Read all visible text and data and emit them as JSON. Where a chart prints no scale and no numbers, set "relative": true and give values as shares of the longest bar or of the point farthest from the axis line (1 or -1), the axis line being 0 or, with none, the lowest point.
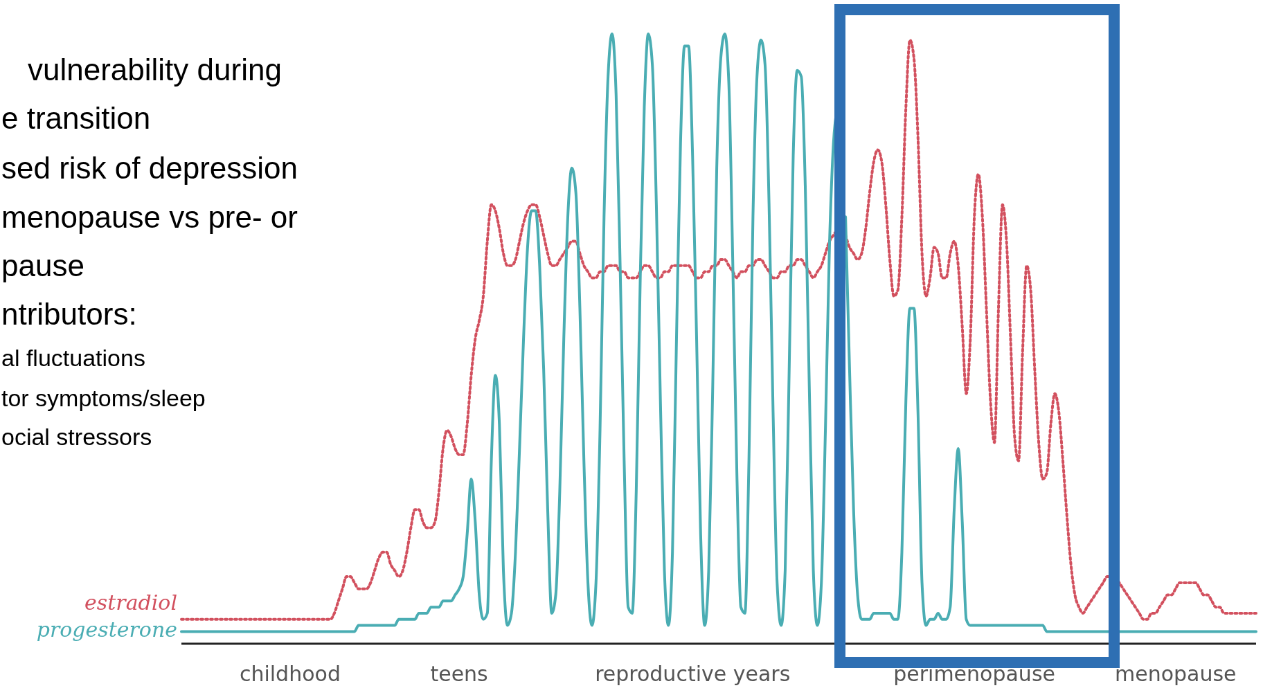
{
  "chart_data": {
    "type": "line",
    "relative": true,
    "annotations": [
      "vulnerability during",
      "e transition",
      "sed risk of depression",
      "menopause vs pre- or",
      "pause",
      "ntributors:",
      "al fluctuations",
      "tor symptoms/sleep",
      "ocial stressors"
    ],
    "categories": [
      null,
      null,
      null,
      null,
      null,
      null,
      null,
      null,
      null,
      null,
      null,
      null,
      null,
      null,
      null,
      null,
      null,
      null,
      null,
      null,
      null,
      null,
      null,
      null,
      null,
      null,
      null,
      "childhood",
      null,
      null,
      null,
      null,
      null,
      null,
      null,
      null,
      null,
      null,
      null,
      null,
      null,
      null,
      null,
      null,
      null,
      null,
      null,
      null,
      null,
      null,
      null,
      null,
      null,
      null,
      null,
      null,
      null,
      null,
      null,
      null,
      null,
      null,
      null,
      null,
      null,
      null,
      null,
      null,
      null,
      "teens",
      null,
      null,
      null,
      null,
      null,
      null,
      null,
      null,
      null,
      null,
      null,
      null,
      null,
      null,
      null,
      null,
      null,
      null,
      null,
      null,
      null,
      null,
      null,
      null,
      null,
      null,
      null,
      null,
      null,
      null,
      null,
      null,
      null,
      null,
      null,
      null,
      null,
      null,
      null,
      null,
      null,
      null,
      null,
      null,
      null,
      null,
      null,
      null,
      null,
      null,
      null,
      null,
      null,
      null,
      null,
      null,
      null,
      "reproductive years",
      null,
      null,
      null,
      null,
      null,
      null,
      null,
      null,
      null,
      null,
      null,
      null,
      null,
      null,
      null,
      null,
      null,
      null,
      null,
      null,
      null,
      null,
      null,
      null,
      null,
      null,
      null,
      null,
      null,
      null,
      null,
      null,
      null,
      null,
      null,
      null,
      null,
      null,
      null,
      null,
      null,
      null,
      null,
      null,
      null,
      null,
      null,
      null,
      null,
      null,
      null,
      null,
      null,
      null,
      null,
      null,
      null,
      null,
      null,
      null,
      null,
      null,
      null,
      null,
      null,
      null,
      null,
      null,
      null,
      "perimenopause",
      null,
      null,
      null,
      null,
      null,
      null,
      null,
      null,
      null,
      null,
      null,
      null,
      null,
      null,
      null,
      null,
      null,
      null,
      null,
      null,
      null,
      null,
      null,
      null,
      null,
      null,
      null,
      null,
      null,
      null,
      null,
      null,
      null,
      null,
      null,
      null,
      null,
      null,
      null,
      null,
      null,
      null,
      null,
      null,
      null,
      null,
      null,
      null,
      null,
      "menopause",
      null,
      null,
      null,
      null,
      null,
      null,
      null,
      null,
      null,
      null,
      null,
      null,
      null,
      null,
      null,
      null,
      null,
      null,
      null,
      null
    ],
    "series": [
      {
        "name": "estradiol",
        "color": "#d2505e",
        "line_style": "dotted",
        "values": [
          0.04,
          0.04,
          0.04,
          0.04,
          0.04,
          0.04,
          0.04,
          0.04,
          0.04,
          0.04,
          0.04,
          0.04,
          0.04,
          0.04,
          0.04,
          0.04,
          0.04,
          0.04,
          0.04,
          0.04,
          0.04,
          0.04,
          0.04,
          0.04,
          0.04,
          0.04,
          0.04,
          0.04,
          0.04,
          0.04,
          0.04,
          0.04,
          0.04,
          0.04,
          0.04,
          0.04,
          0.04,
          0.04,
          0.05,
          0.07,
          0.09,
          0.11,
          0.11,
          0.1,
          0.09,
          0.09,
          0.09,
          0.1,
          0.12,
          0.14,
          0.15,
          0.15,
          0.13,
          0.12,
          0.11,
          0.12,
          0.15,
          0.19,
          0.22,
          0.22,
          0.2,
          0.19,
          0.19,
          0.2,
          0.25,
          0.32,
          0.35,
          0.34,
          0.32,
          0.31,
          0.31,
          0.36,
          0.44,
          0.5,
          0.53,
          0.57,
          0.66,
          0.72,
          0.71,
          0.68,
          0.64,
          0.62,
          0.62,
          0.63,
          0.66,
          0.69,
          0.71,
          0.72,
          0.72,
          0.7,
          0.67,
          0.64,
          0.62,
          0.62,
          0.63,
          0.64,
          0.65,
          0.66,
          0.66,
          0.64,
          0.62,
          0.61,
          0.6,
          0.6,
          0.61,
          0.61,
          0.62,
          0.62,
          0.62,
          0.61,
          0.61,
          0.6,
          0.6,
          0.6,
          0.61,
          0.62,
          0.62,
          0.61,
          0.6,
          0.6,
          0.61,
          0.61,
          0.62,
          0.62,
          0.62,
          0.62,
          0.62,
          0.61,
          0.6,
          0.6,
          0.61,
          0.61,
          0.62,
          0.62,
          0.63,
          0.63,
          0.62,
          0.61,
          0.6,
          0.61,
          0.61,
          0.62,
          0.62,
          0.63,
          0.63,
          0.62,
          0.61,
          0.6,
          0.6,
          0.61,
          0.61,
          0.62,
          0.62,
          0.63,
          0.63,
          0.62,
          0.61,
          0.6,
          0.61,
          0.62,
          0.64,
          0.66,
          0.67,
          0.68,
          null,
          0.67,
          0.65,
          0.64,
          0.63,
          0.64,
          0.68,
          0.74,
          0.79,
          0.81,
          0.79,
          0.72,
          0.63,
          0.57,
          0.58,
          0.7,
          0.88,
          0.99,
          0.96,
          0.83,
          0.64,
          0.57,
          0.6,
          0.65,
          0.64,
          0.6,
          0.6,
          0.64,
          0.66,
          0.62,
          0.52,
          0.41,
          0.5,
          0.7,
          0.77,
          0.7,
          0.55,
          0.4,
          0.33,
          0.55,
          0.72,
          0.66,
          0.5,
          0.34,
          0.3,
          0.48,
          0.62,
          0.58,
          0.45,
          0.33,
          0.27,
          0.28,
          0.36,
          0.41,
          0.38,
          0.3,
          0.21,
          0.13,
          0.08,
          0.06,
          0.05,
          0.06,
          0.07,
          0.08,
          0.09,
          0.1,
          0.11,
          0.11,
          0.11,
          0.1,
          0.09,
          0.08,
          0.07,
          0.06,
          0.05,
          0.04,
          0.04,
          0.05,
          0.05,
          0.06,
          0.07,
          0.08,
          0.08,
          0.09,
          0.1,
          0.1,
          0.1,
          0.1,
          0.1,
          0.09,
          0.08,
          0.08,
          0.07,
          0.06,
          0.06,
          0.05,
          0.05,
          0.05,
          0.05,
          0.05,
          0.05,
          0.05,
          0.05,
          0.05
        ]
      },
      {
        "name": "progesterone",
        "color": "#4aadb3",
        "line_style": "solid",
        "values": [
          0.02,
          0.02,
          0.02,
          0.02,
          0.02,
          0.02,
          0.02,
          0.02,
          0.02,
          0.02,
          0.02,
          0.02,
          0.02,
          0.02,
          0.02,
          0.02,
          0.02,
          0.02,
          0.02,
          0.02,
          0.02,
          0.02,
          0.02,
          0.02,
          0.02,
          0.02,
          0.02,
          0.02,
          0.02,
          0.02,
          0.02,
          0.02,
          0.02,
          0.02,
          0.02,
          0.02,
          0.02,
          0.02,
          0.02,
          0.02,
          0.02,
          0.02,
          0.02,
          0.02,
          0.03,
          0.03,
          0.03,
          0.03,
          0.03,
          0.03,
          0.03,
          0.03,
          0.03,
          0.03,
          0.04,
          0.04,
          0.04,
          0.04,
          0.04,
          0.05,
          0.05,
          0.05,
          0.06,
          0.06,
          0.06,
          0.07,
          0.07,
          0.07,
          0.08,
          0.09,
          0.11,
          0.18,
          0.27,
          0.2,
          0.08,
          0.04,
          0.05,
          0.3,
          0.44,
          0.36,
          0.12,
          0.03,
          0.05,
          0.15,
          0.32,
          0.5,
          0.65,
          0.71,
          0.71,
          0.62,
          0.45,
          0.22,
          0.05,
          0.08,
          0.25,
          0.5,
          0.7,
          0.78,
          0.74,
          0.55,
          0.3,
          0.1,
          0.03,
          0.1,
          0.35,
          0.7,
          0.93,
          1,
          0.9,
          0.62,
          0.3,
          0.06,
          0.05,
          0.25,
          0.6,
          0.88,
          1,
          0.95,
          0.72,
          0.4,
          0.12,
          0.03,
          0.15,
          0.5,
          0.82,
          0.98,
          0.98,
          0.8,
          0.5,
          0.18,
          0.03,
          0.12,
          0.42,
          0.78,
          0.96,
          1,
          0.92,
          0.62,
          0.28,
          0.06,
          0.05,
          0.3,
          0.7,
          0.93,
          0.99,
          0.95,
          0.72,
          0.38,
          0.1,
          0.03,
          0.12,
          0.45,
          0.8,
          0.94,
          0.93,
          0.75,
          0.42,
          0.12,
          0.03,
          0.1,
          0.35,
          0.65,
          0.82,
          0.88,
          null,
          0.7,
          0.45,
          0.22,
          0.08,
          0.04,
          0.04,
          0.04,
          0.05,
          0.05,
          0.05,
          0.05,
          0.05,
          0.04,
          0.04,
          0.15,
          0.4,
          0.55,
          0.55,
          0.38,
          0.1,
          0.03,
          0.04,
          0.04,
          0.05,
          0.04,
          0.04,
          0.06,
          0.22,
          0.32,
          0.2,
          0.04,
          0.03,
          0.03,
          0.03,
          0.03,
          0.03,
          0.03,
          0.03,
          0.03,
          0.03,
          0.03,
          0.03,
          0.03,
          0.03,
          0.03,
          0.03,
          0.03,
          0.03,
          0.03,
          0.03,
          0.02,
          0.02,
          0.02,
          0.02,
          0.02,
          0.02,
          0.02,
          0.02,
          0.02,
          0.02,
          0.02,
          0.02,
          0.02,
          0.02,
          0.02,
          0.02,
          0.02,
          0.02,
          0.02,
          0.02,
          0.02,
          0.02,
          0.02,
          0.02,
          0.02,
          0.02,
          0.02,
          0.02,
          0.02,
          0.02,
          0.02,
          0.02,
          0.02,
          0.02,
          0.02,
          0.02,
          0.02,
          0.02,
          0.02,
          0.02,
          0.02,
          0.02,
          0.02,
          0.02,
          0.02,
          0.02,
          0.02,
          0.02,
          0.02,
          0.02,
          0.02,
          0.02,
          0.02
        ]
      }
    ]
  }
}
